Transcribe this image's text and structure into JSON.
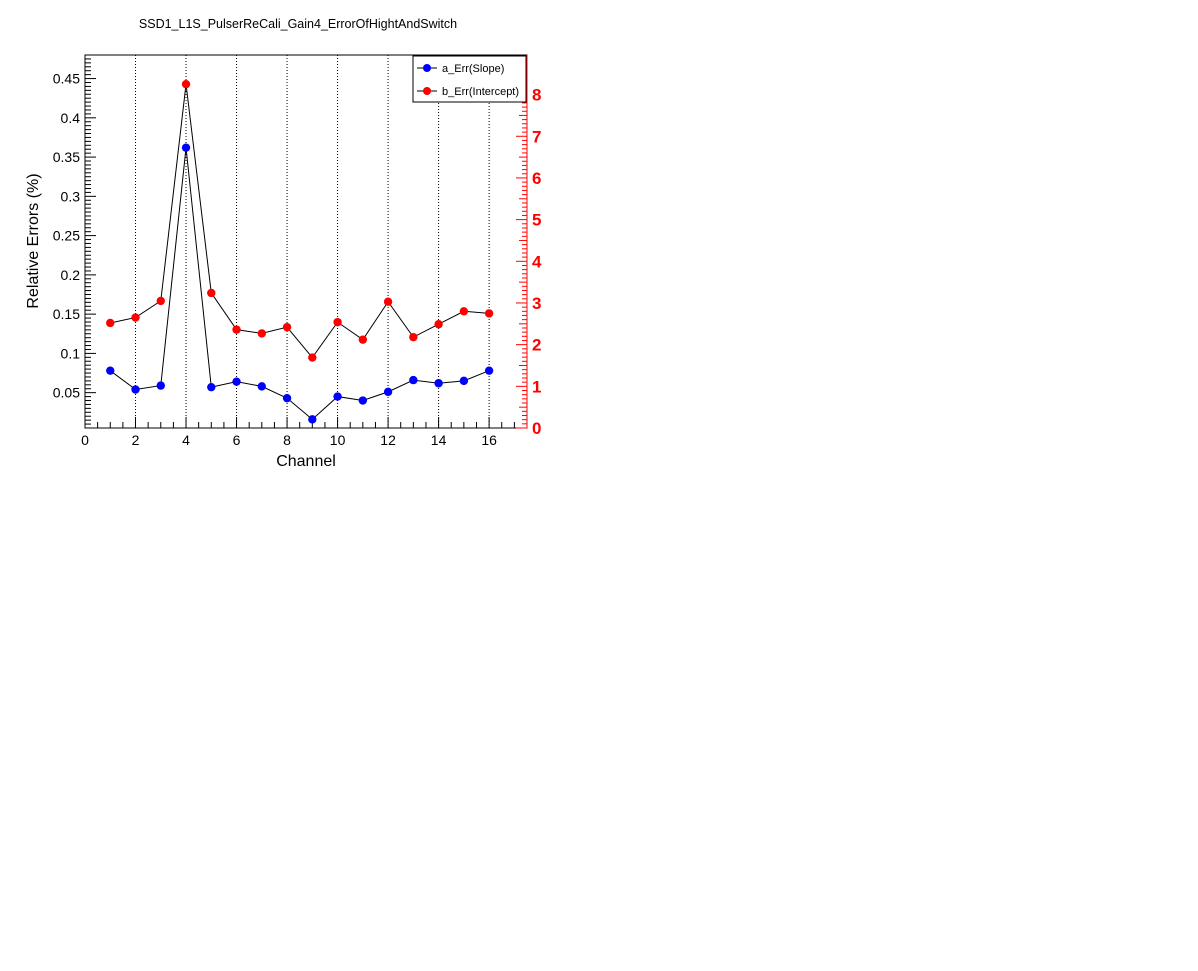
{
  "chart_data": {
    "type": "line",
    "title": "SSD1_L1S_PulserReCali_Gain4_ErrorOfHightAndSwitch",
    "xlabel": "Channel",
    "ylabel": "Relative Errors (%)",
    "xlim": [
      0,
      17.5
    ],
    "ylim": [
      0.005,
      0.48
    ],
    "y2lim": [
      0,
      8.95
    ],
    "xticks": [
      0,
      2,
      4,
      6,
      8,
      10,
      12,
      14,
      16
    ],
    "yticks": [
      0.05,
      0.1,
      0.15,
      0.2,
      0.25,
      0.3,
      0.35,
      0.4,
      0.45
    ],
    "y2ticks": [
      0,
      1,
      2,
      3,
      4,
      5,
      6,
      7,
      8
    ],
    "grid": "vertical dotted lines at x ticks",
    "legend_position": "top-right",
    "x": [
      1,
      2,
      3,
      4,
      5,
      6,
      7,
      8,
      9,
      10,
      11,
      12,
      13,
      14,
      15,
      16
    ],
    "series": [
      {
        "name": "a_Err(Slope)",
        "axis": "left",
        "color": "#0000ff",
        "values": [
          0.078,
          0.054,
          0.059,
          0.362,
          0.057,
          0.064,
          0.058,
          0.043,
          0.016,
          0.045,
          0.04,
          0.051,
          0.066,
          0.062,
          0.065,
          0.078
        ]
      },
      {
        "name": "b_Err(Intercept)",
        "axis": "right",
        "color": "#ff0000",
        "values": [
          2.52,
          2.65,
          3.05,
          8.25,
          3.24,
          2.36,
          2.27,
          2.42,
          1.69,
          2.54,
          2.12,
          3.03,
          2.18,
          2.49,
          2.8,
          2.75
        ]
      }
    ],
    "right_axis_color": "#ff0000"
  }
}
